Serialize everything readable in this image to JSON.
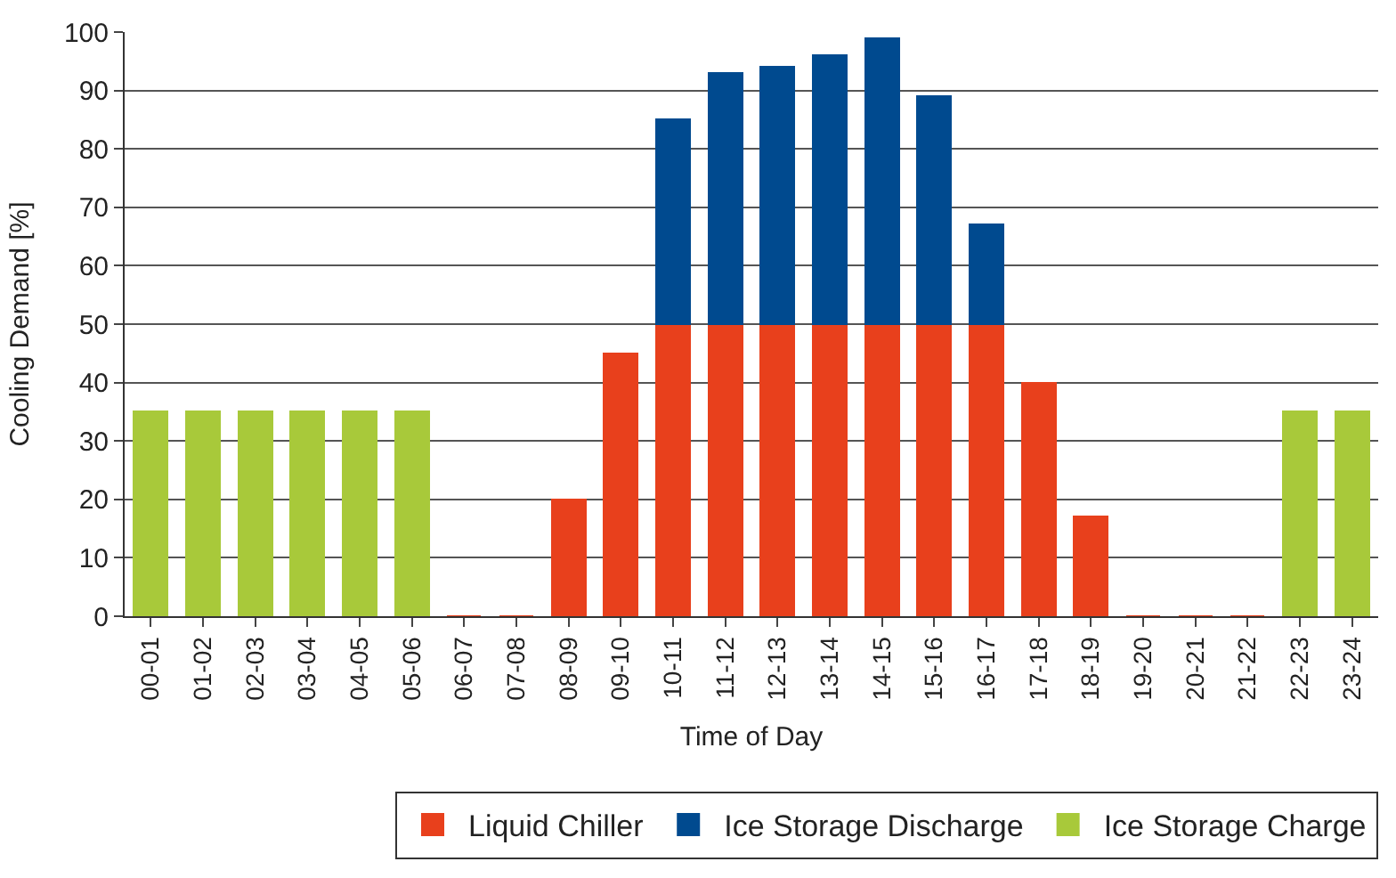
{
  "chart_data": {
    "type": "bar",
    "stacked": true,
    "xlabel": "Time of Day",
    "ylabel": "Cooling Demand [%]",
    "categories": [
      "00-01",
      "01-02",
      "02-03",
      "03-04",
      "04-05",
      "05-06",
      "06-07",
      "07-08",
      "08-09",
      "09-10",
      "10-11",
      "11-12",
      "12-13",
      "13-14",
      "14-15",
      "15-16",
      "16-17",
      "17-18",
      "18-19",
      "19-20",
      "20-21",
      "21-22",
      "22-23",
      "23-24"
    ],
    "series": [
      {
        "name": "Liquid Chiller",
        "color": "#e8401c",
        "values": [
          null,
          null,
          null,
          null,
          null,
          null,
          0,
          0,
          20,
          45,
          50,
          50,
          50,
          50,
          50,
          50,
          50,
          40,
          17,
          0,
          0,
          0,
          null,
          null
        ]
      },
      {
        "name": "Ice Storage Discharge",
        "color": "#004a8f",
        "values": [
          null,
          null,
          null,
          null,
          null,
          null,
          null,
          null,
          null,
          null,
          35,
          43,
          44,
          46,
          49,
          39,
          17,
          null,
          null,
          null,
          null,
          null,
          null,
          null
        ]
      },
      {
        "name": "Ice Storage Charge",
        "color": "#a8c93a",
        "values": [
          35,
          35,
          35,
          35,
          35,
          35,
          null,
          null,
          null,
          null,
          null,
          null,
          null,
          null,
          null,
          null,
          null,
          null,
          null,
          null,
          null,
          null,
          35,
          35
        ]
      }
    ],
    "ylim": [
      0,
      100
    ],
    "yticks": [
      0,
      10,
      20,
      30,
      40,
      50,
      60,
      70,
      80,
      90,
      100
    ],
    "grid": "y",
    "legend": "bottom"
  }
}
